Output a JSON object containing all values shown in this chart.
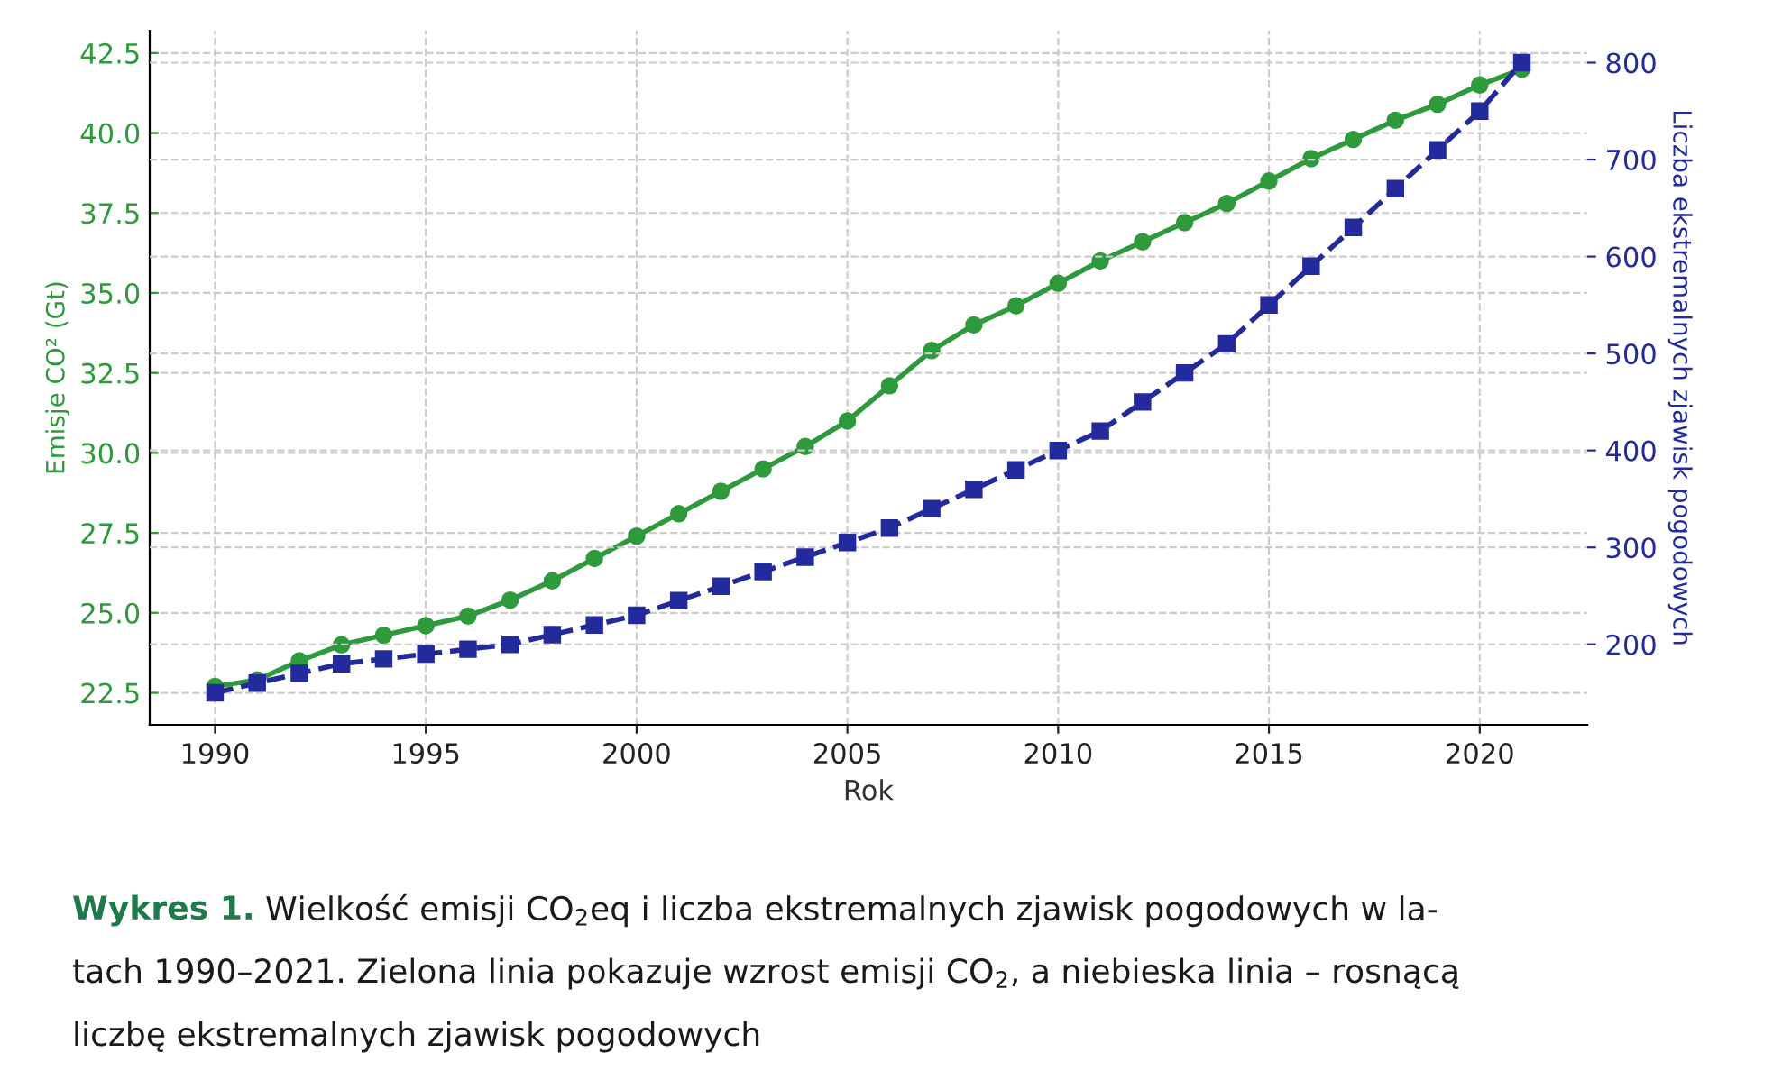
{
  "chart_data": {
    "type": "line",
    "xlabel": "Rok",
    "ylabel": "Emisje CO² (Gt)",
    "y2label": "Liczba ekstremalnych zjawisk pogodowych",
    "x": [
      1990,
      1991,
      1992,
      1993,
      1994,
      1995,
      1996,
      1997,
      1998,
      1999,
      2000,
      2001,
      2002,
      2003,
      2004,
      2005,
      2006,
      2007,
      2008,
      2009,
      2010,
      2011,
      2012,
      2013,
      2014,
      2015,
      2016,
      2017,
      2018,
      2019,
      2020,
      2021
    ],
    "series": [
      {
        "color": "#2e9a3c",
        "marker": "circle",
        "line_style": "solid",
        "values": [
          22.7,
          22.9,
          23.5,
          24.0,
          24.3,
          24.6,
          24.9,
          25.4,
          26.0,
          26.7,
          27.4,
          28.1,
          28.8,
          29.5,
          30.2,
          31.0,
          32.1,
          33.2,
          34.0,
          34.6,
          35.3,
          36.0,
          36.6,
          37.2,
          37.8,
          38.5,
          39.2,
          39.8,
          40.4,
          40.9,
          41.5,
          42.0
        ]
      },
      {
        "color": "#232a9c",
        "marker": "square",
        "line_style": "dashed",
        "axis": "y2",
        "values": [
          150,
          160,
          170,
          180,
          185,
          190,
          195,
          200,
          210,
          220,
          230,
          245,
          260,
          275,
          290,
          305,
          320,
          340,
          360,
          380,
          400,
          420,
          450,
          480,
          510,
          550,
          590,
          630,
          670,
          710,
          750,
          800
        ]
      }
    ],
    "xlim": [
      1988.45,
      2022.55
    ],
    "xticks": [
      1990,
      1995,
      2000,
      2005,
      2010,
      2015,
      2020
    ],
    "ylim": [
      21.5,
      43.2
    ],
    "yticks": [
      22.5,
      {
        "value": 25,
        "label": "25.0"
      },
      27.5,
      {
        "value": 30,
        "label": "30.0"
      },
      32.5,
      {
        "value": 35,
        "label": "35.0"
      },
      37.5,
      {
        "value": 40,
        "label": "40.0"
      },
      42.5
    ],
    "y2lim": [
      117,
      833
    ],
    "y2ticks": [
      200,
      300,
      400,
      500,
      600,
      700,
      800
    ],
    "grid": true,
    "legend": false,
    "annotations": [
      "Wykres 1.",
      "Wielkość emisji CO$_{2}$eq i liczba ekstremalnych zjawisk pogodowych w la-\ntach 1990–2021. Zielona linia pokazuje wzrost emisji CO$_{2}$, a niebieska linia – rosnącą\nliczbę ekstremalnych zjawisk pogodowych"
    ]
  }
}
